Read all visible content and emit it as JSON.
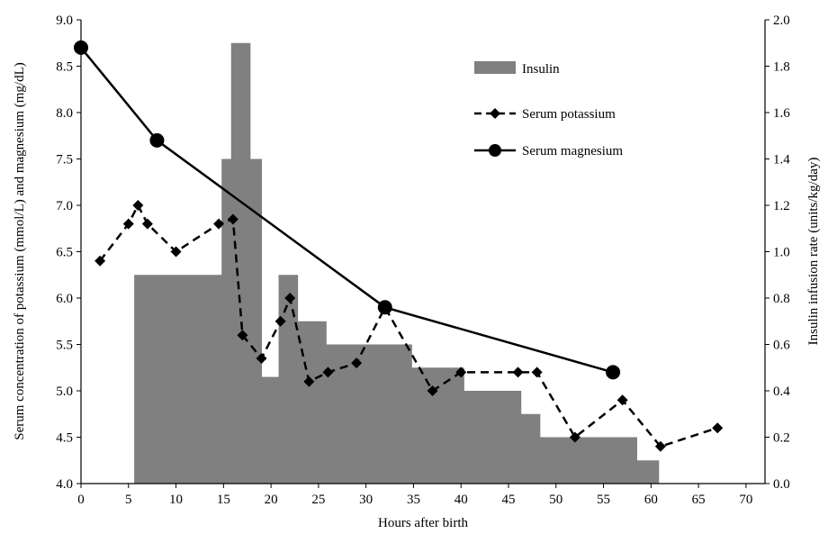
{
  "chart_data": {
    "type": "bar+line",
    "title": "",
    "xlabel": "Hours after birth",
    "ylabel_left": "Serum concentration of potassium (mmol/L) and magnesium (mg/dL)",
    "ylabel_right": "Insulin infusion rate (units/kg/day)",
    "xlim": [
      0,
      72
    ],
    "ylim_left": [
      4.0,
      9.0
    ],
    "ylim_right": [
      0.0,
      2.0
    ],
    "x_ticks": [
      "0",
      "5",
      "10",
      "15",
      "20",
      "25",
      "30",
      "35",
      "40",
      "45",
      "50",
      "55",
      "60",
      "65",
      "70"
    ],
    "y_left_ticks": [
      "4.0",
      "4.5",
      "5.0",
      "5.5",
      "6.0",
      "6.5",
      "7.0",
      "7.5",
      "8.0",
      "8.5",
      "9.0"
    ],
    "y_right_ticks": [
      "0.0",
      "0.2",
      "0.4",
      "0.6",
      "0.8",
      "1.0",
      "1.2",
      "1.4",
      "1.6",
      "1.8",
      "2.0"
    ],
    "grid": false,
    "legend_position": "top-right",
    "legend": [
      "Insulin",
      "Serum potassium",
      "Serum magnesium"
    ],
    "series": [
      {
        "name": "Insulin",
        "kind": "step-area",
        "axis": "right",
        "color": "#808080",
        "segments": [
          {
            "x0": 5.6,
            "x1": 14.8,
            "value": 0.9
          },
          {
            "x0": 14.8,
            "x1": 15.8,
            "value": 1.4
          },
          {
            "x0": 15.8,
            "x1": 17.8,
            "value": 1.9
          },
          {
            "x0": 17.8,
            "x1": 19.0,
            "value": 1.4
          },
          {
            "x0": 19.0,
            "x1": 20.8,
            "value": 0.46
          },
          {
            "x0": 20.8,
            "x1": 22.8,
            "value": 0.9
          },
          {
            "x0": 22.8,
            "x1": 25.8,
            "value": 0.7
          },
          {
            "x0": 25.8,
            "x1": 34.8,
            "value": 0.6
          },
          {
            "x0": 34.8,
            "x1": 40.3,
            "value": 0.5
          },
          {
            "x0": 40.3,
            "x1": 46.3,
            "value": 0.4
          },
          {
            "x0": 46.3,
            "x1": 48.3,
            "value": 0.3
          },
          {
            "x0": 48.3,
            "x1": 58.5,
            "value": 0.2
          },
          {
            "x0": 58.5,
            "x1": 60.8,
            "value": 0.1
          }
        ]
      },
      {
        "name": "Serum potassium",
        "kind": "line-dashed",
        "axis": "left",
        "marker": "diamond",
        "x": [
          2,
          5,
          6,
          7,
          10,
          14.5,
          16,
          17,
          19,
          21,
          22,
          24,
          26,
          29,
          32,
          37,
          40,
          46,
          48,
          52,
          57,
          61,
          67
        ],
        "y": [
          6.4,
          6.8,
          7.0,
          6.8,
          6.5,
          6.8,
          6.85,
          5.6,
          5.35,
          5.75,
          6.0,
          5.1,
          5.2,
          5.3,
          5.9,
          5.0,
          5.2,
          5.2,
          5.2,
          4.5,
          4.9,
          4.4,
          4.6
        ]
      },
      {
        "name": "Serum magnesium",
        "kind": "line-solid",
        "axis": "left",
        "marker": "circle",
        "x": [
          0,
          8,
          32,
          56
        ],
        "y": [
          8.7,
          7.7,
          5.9,
          5.2
        ]
      }
    ]
  }
}
